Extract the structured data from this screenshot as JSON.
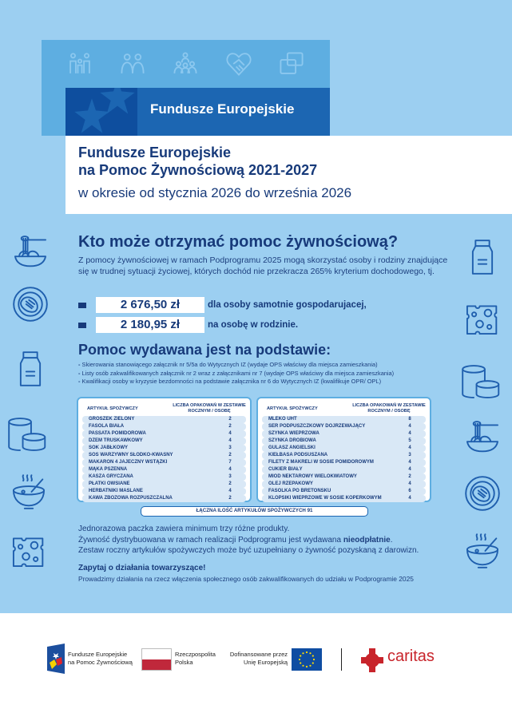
{
  "header": {
    "logo_title": "Fundusze Europejskie",
    "title_line1": "Fundusze Europejskie",
    "title_line2": "na Pomoc Żywnościową 2021-2027",
    "title_line3": "w okresie od stycznia 2026 do września 2026",
    "top_icons": [
      "family-icon",
      "people-icon",
      "group-icon",
      "handshake-heart-icon",
      "chat-icon"
    ]
  },
  "who": {
    "title": "Kto może otrzymać pomoc żywnościową?",
    "text": "Z pomocy żywnościowej w ramach Podprogramu 2025 mogą skorzystać osoby i rodziny znajdujące się w trudnej sytuacji życiowej, których dochód nie przekracza 265% kryterium dochodowego, tj.",
    "amounts": [
      {
        "value": "2 676,50 zł",
        "label": "dla osoby samotnie gospodarujacej,"
      },
      {
        "value": "2 180,95 zł",
        "label": "na osobę w rodzinie."
      }
    ]
  },
  "basis": {
    "title": "Pomoc wydawana jest na podstawie:",
    "items": [
      "Skierowania stanowiącego załącznik nr 5/5a do Wytycznych IZ (wydaje OPS właściwy dla miejsca zamieszkania)",
      "Listy osób zakwalifikowanych załącznik nr 2 wraz z załącznikami nr 7 (wydaje OPS właściwy dla miejsca zamieszkania)",
      "Kwalifikacji osoby w kryzysie bezdomności na podstawie załącznika nr 6 do Wytycznych IZ (kwalifikuje OPR/ OPL)"
    ]
  },
  "tables": {
    "col1": "ARTYKUŁ SPOŻYWCZY",
    "col2": "LICZBA OPAKOWAŃ W ZESTAWIE ROCZNYM / OSOBĘ",
    "left": [
      [
        "GROSZEK ZIELONY",
        "2"
      ],
      [
        "FASOLA BIAŁA",
        "2"
      ],
      [
        "PASSATA POMIDOROWA",
        "4"
      ],
      [
        "DŻEM TRUSKAWKOWY",
        "4"
      ],
      [
        "SOK JABŁKOWY",
        "3"
      ],
      [
        "SOS WARZYWNY SŁODKO-KWAŚNY",
        "2"
      ],
      [
        "MAKARON 4 JAJECZNY WSTĄŻKI",
        "7"
      ],
      [
        "MĄKA PSZENNA",
        "4"
      ],
      [
        "KASZA GRYCZANA",
        "3"
      ],
      [
        "PŁATKI OWSIANE",
        "2"
      ],
      [
        "HERBATNIKI MAŚLANE",
        "4"
      ],
      [
        "KAWA ZBOŻOWA ROZPUSZCZALNA",
        "2"
      ]
    ],
    "right": [
      [
        "MLEKO UHT",
        "8"
      ],
      [
        "SER PODPUSZCZKOWY DOJRZEWAJĄCY",
        "4"
      ],
      [
        "SZYNKA WIEPRZOWA",
        "4"
      ],
      [
        "SZYNKA DROBIOWA",
        "5"
      ],
      [
        "GULASZ ANGIELSKI",
        "4"
      ],
      [
        "KIEŁBASA PODSUSZANA",
        "3"
      ],
      [
        "FILETY Z MAKRELI W SOSIE POMIDOROWYM",
        "4"
      ],
      [
        "CUKIER BIAŁY",
        "4"
      ],
      [
        "MIÓD NEKTAROWY WIELOKWIATOWY",
        "2"
      ],
      [
        "OLEJ RZEPAKOWY",
        "4"
      ],
      [
        "FASOLKA PO BRETOŃSKU",
        "6"
      ],
      [
        "KLOPSIKI WIEPRZOWE W SOSIE KOPERKOWYM",
        "4"
      ]
    ],
    "total": "ŁĄCZNA ILOŚĆ ARTYKUŁÓW SPOŻYWCZYCH 91"
  },
  "notes": {
    "line1": "Jednorazowa paczka zawiera minimum trzy różne produkty.",
    "line2_pre": "Żywność dystrybuowana w ramach realizacji Podprogramu jest wydawana ",
    "line2_bold": "nieodpłatnie",
    "line2_post": ".",
    "line3": "Zestaw roczny artykułów spożywczych może być uzupełniany o żywność pozyskaną z darowizn.",
    "ask_title": "Zapytaj o działania towarzyszące!",
    "ask_text": "Prowadzimy działania na rzecz włączenia społecznego osób zakwalifikowanych do udziału w Podprogramie 2025"
  },
  "footer": {
    "fe_line1": "Fundusze Europejskie",
    "fe_line2": "na Pomoc Żywnościową",
    "rp_line1": "Rzeczpospolita",
    "rp_line2": "Polska",
    "eu_line1": "Dofinansowane przez",
    "eu_line2": "Unię Europejską",
    "caritas": "caritas"
  },
  "colors": {
    "background": "#9ccff1",
    "navy": "#173a7a",
    "fe_blue": "#1c66b2",
    "caritas_red": "#c8242b",
    "pl_red": "#c0283b",
    "eu_blue": "#0f4da2",
    "eu_yellow": "#ffdd00"
  }
}
